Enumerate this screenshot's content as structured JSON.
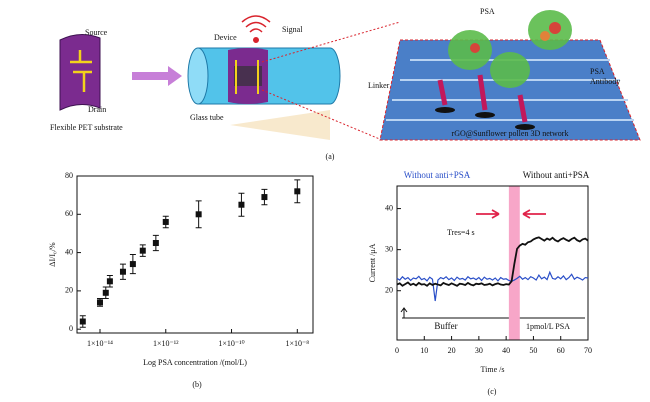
{
  "diagram": {
    "source": "Source",
    "drain": "Drain",
    "substrate": "Flexible PET substrate",
    "device": "Device",
    "signal": "Signal",
    "tube": "Glass tube",
    "psa": "PSA",
    "linker": "Linker",
    "antibody_1": "PSA",
    "antibody_2": "Antibody",
    "network": "rGO@Sunflower pollen 3D network",
    "caption": "(a)"
  },
  "chart_data": [
    {
      "type": "scatter",
      "caption": "(b)",
      "xlabel": "Log PSA concentration /(mol/L)",
      "ylabel": "ΔI/I₀/%",
      "log_x": true,
      "color": "#111111",
      "x": [
        3e-15,
        1e-14,
        1.5e-14,
        2e-14,
        5e-14,
        1e-13,
        2e-13,
        5e-13,
        1e-12,
        1e-11,
        2e-10,
        1e-09,
        1e-08
      ],
      "values": [
        4,
        14,
        19,
        25,
        30,
        34,
        41,
        45,
        56,
        60,
        65,
        69,
        72
      ],
      "errors": [
        3,
        2,
        3,
        3,
        4,
        5,
        3,
        4,
        3,
        7,
        6,
        4,
        6
      ],
      "xlim": [
        2e-15,
        3e-08
      ],
      "xticks": [
        {
          "value": 1e-14,
          "label": "1×10⁻¹⁴"
        },
        {
          "value": 1e-12,
          "label": "1×10⁻¹²"
        },
        {
          "value": 1e-10,
          "label": "1×10⁻¹⁰"
        },
        {
          "value": 1e-08,
          "label": "1×10⁻⁸"
        }
      ],
      "ylim": [
        -2,
        80
      ],
      "yticks": [
        0,
        20,
        40,
        60,
        80
      ]
    },
    {
      "type": "line",
      "caption": "(c)",
      "xlabel": "Time /s",
      "ylabel": "Current /μA",
      "x": [
        0,
        1,
        2,
        3,
        4,
        5,
        6,
        7,
        8,
        9,
        10,
        11,
        12,
        13,
        14,
        15,
        16,
        17,
        18,
        19,
        20,
        21,
        22,
        23,
        24,
        25,
        26,
        27,
        28,
        29,
        30,
        31,
        32,
        33,
        34,
        35,
        36,
        37,
        38,
        39,
        40,
        41,
        42,
        43,
        44,
        45,
        46,
        47,
        48,
        49,
        50,
        51,
        52,
        53,
        54,
        55,
        56,
        57,
        58,
        59,
        60,
        61,
        62,
        63,
        64,
        65,
        66,
        67,
        68,
        69,
        70
      ],
      "series": [
        {
          "name": "Without anti+PSA",
          "color": "#111111",
          "values": [
            21.5,
            21.8,
            21.2,
            21.6,
            22.0,
            21.4,
            21.7,
            21.3,
            21.9,
            21.5,
            21.6,
            21.2,
            21.8,
            21.4,
            21.7,
            21.5,
            21.3,
            21.9,
            21.6,
            21.4,
            21.8,
            21.5,
            21.2,
            21.7,
            21.6,
            21.4,
            21.9,
            21.5,
            21.3,
            21.7,
            21.6,
            21.8,
            21.4,
            21.5,
            21.7,
            21.3,
            21.6,
            21.8,
            21.5,
            21.4,
            21.6,
            21.5,
            22.3,
            26.5,
            30.2,
            31.0,
            31.4,
            31.2,
            31.8,
            32.0,
            32.5,
            32.8,
            33.0,
            32.6,
            32.2,
            32.7,
            32.4,
            32.9,
            32.3,
            32.0,
            32.5,
            32.8,
            32.4,
            32.1,
            32.6,
            32.9,
            32.3,
            32.0,
            32.5,
            32.7,
            32.2
          ]
        },
        {
          "name": "Without anti+PSA",
          "color": "#2a4fc8",
          "values": [
            23.0,
            22.6,
            23.4,
            22.8,
            23.2,
            22.5,
            23.1,
            22.9,
            23.5,
            22.7,
            23.0,
            22.4,
            23.3,
            22.8,
            17.5,
            22.6,
            23.2,
            22.9,
            23.4,
            22.7,
            23.1,
            22.5,
            23.3,
            22.8,
            23.0,
            22.6,
            23.4,
            22.9,
            23.1,
            22.7,
            23.2,
            22.5,
            23.3,
            22.8,
            23.0,
            22.6,
            23.1,
            22.4,
            23.2,
            22.8,
            22.9,
            22.5,
            22.3,
            22.6,
            23.0,
            23.5,
            22.8,
            23.2,
            22.7,
            23.4,
            23.1,
            22.6,
            23.8,
            22.9,
            23.3,
            22.7,
            24.5,
            23.0,
            22.8,
            23.4,
            22.9,
            23.6,
            22.7,
            23.2,
            24.0,
            22.8,
            23.3,
            23.0,
            22.6,
            23.2,
            23.1
          ]
        }
      ],
      "highlight_x": [
        41,
        45
      ],
      "highlight_color": "#f7a6c8",
      "annotations": {
        "response": "Tres=4 s",
        "buffer": "Buffer",
        "psa": "1pmol/L PSA"
      },
      "xlim": [
        0,
        70
      ],
      "xticks": [
        0,
        10,
        20,
        30,
        40,
        50,
        60,
        70
      ],
      "ylim": [
        8,
        45.5
      ],
      "yticks": [
        20,
        30,
        40
      ]
    }
  ]
}
